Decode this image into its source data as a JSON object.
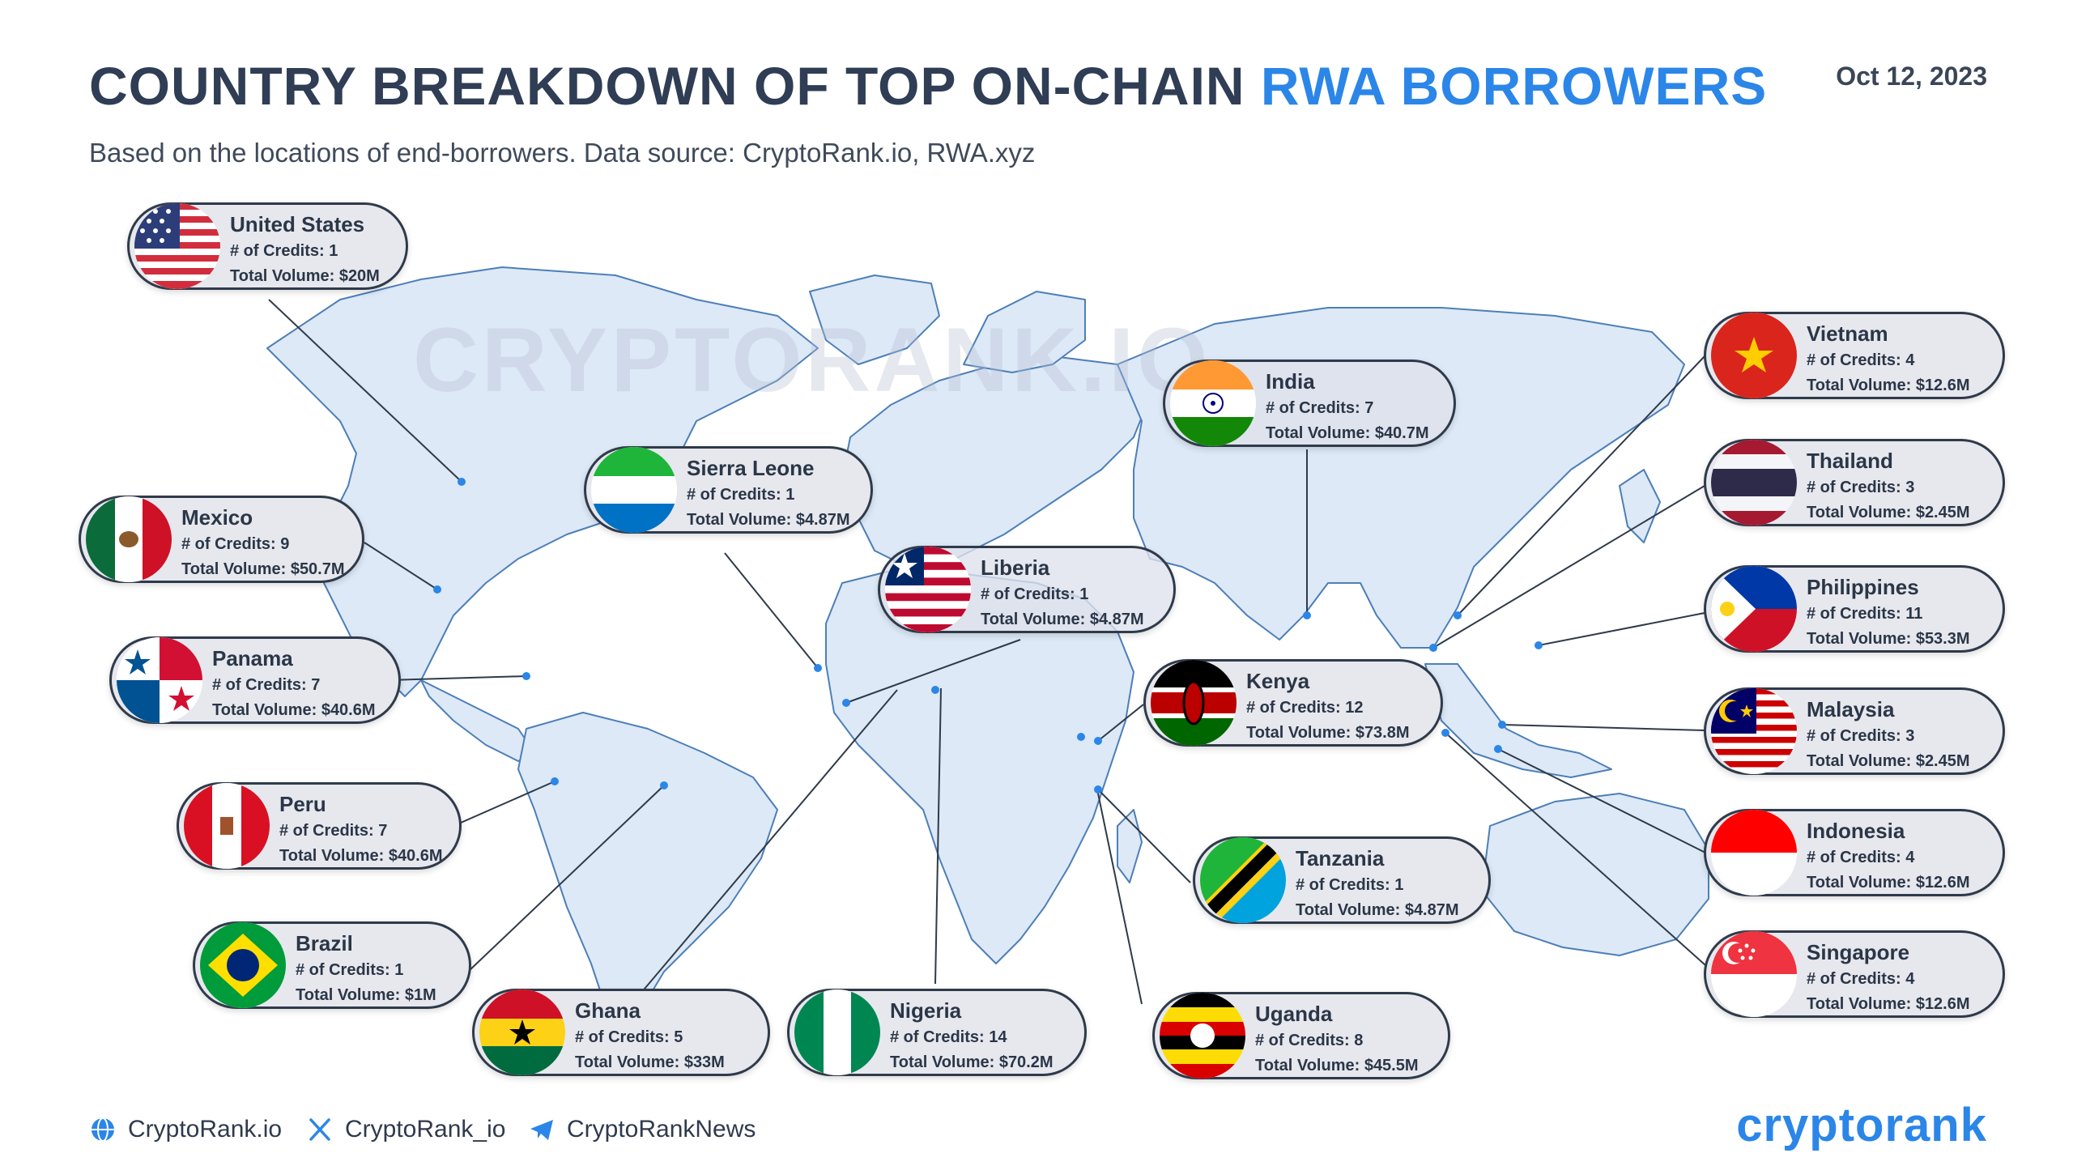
{
  "header": {
    "title_main": "COUNTRY BREAKDOWN OF TOP ON-CHAIN",
    "title_highlight": "RWA BORROWERS",
    "date": "Oct 12, 2023",
    "subtitle": "Based on the locations of end-borrowers. Data source: CryptoRank.io, RWA.xyz"
  },
  "watermark": "CRYPTORANK.IO",
  "colors": {
    "accent": "#2b86e8",
    "title": "#2f3d55",
    "map_fill": "#dde9f7",
    "map_stroke": "#4d7fb8",
    "card_border": "#2f3a4a"
  },
  "countries": [
    {
      "name": "United States",
      "credits_text": "# of Credits: 1",
      "volume_text": "Total Volume: $20M"
    },
    {
      "name": "Mexico",
      "credits_text": "# of Credits: 9",
      "volume_text": "Total Volume: $50.7M"
    },
    {
      "name": "Panama",
      "credits_text": "# of Credits: 7",
      "volume_text": "Total Volume: $40.6M"
    },
    {
      "name": "Peru",
      "credits_text": "# of Credits: 7",
      "volume_text": "Total Volume: $40.6M"
    },
    {
      "name": "Brazil",
      "credits_text": "# of Credits: 1",
      "volume_text": "Total Volume: $1M"
    },
    {
      "name": "Sierra Leone",
      "credits_text": "# of Credits: 1",
      "volume_text": "Total Volume: $4.87M"
    },
    {
      "name": "Liberia",
      "credits_text": "# of Credits: 1",
      "volume_text": "Total Volume: $4.87M"
    },
    {
      "name": "India",
      "credits_text": "# of Credits: 7",
      "volume_text": "Total Volume: $40.7M"
    },
    {
      "name": "Kenya",
      "credits_text": "# of Credits: 12",
      "volume_text": "Total Volume: $73.8M"
    },
    {
      "name": "Tanzania",
      "credits_text": "# of Credits: 1",
      "volume_text": "Total Volume: $4.87M"
    },
    {
      "name": "Uganda",
      "credits_text": "# of Credits: 8",
      "volume_text": "Total Volume: $45.5M"
    },
    {
      "name": "Ghana",
      "credits_text": "# of Credits: 5",
      "volume_text": "Total Volume: $33M"
    },
    {
      "name": "Nigeria",
      "credits_text": "# of Credits: 14",
      "volume_text": "Total Volume: $70.2M"
    },
    {
      "name": "Vietnam",
      "credits_text": "# of Credits: 4",
      "volume_text": "Total Volume: $12.6M"
    },
    {
      "name": "Thailand",
      "credits_text": "# of Credits: 3",
      "volume_text": "Total Volume: $2.45M"
    },
    {
      "name": "Philippines",
      "credits_text": "# of Credits: 11",
      "volume_text": "Total Volume: $53.3M"
    },
    {
      "name": "Malaysia",
      "credits_text": "# of Credits: 3",
      "volume_text": "Total Volume: $2.45M"
    },
    {
      "name": "Indonesia",
      "credits_text": "# of Credits: 4",
      "volume_text": "Total Volume: $12.6M"
    },
    {
      "name": "Singapore",
      "credits_text": "# of Credits: 4",
      "volume_text": "Total Volume: $12.6M"
    }
  ],
  "footer": {
    "website": "CryptoRank.io",
    "twitter": "CryptoRank_io",
    "telegram": "CryptoRankNews",
    "logo": "cryptorank"
  }
}
